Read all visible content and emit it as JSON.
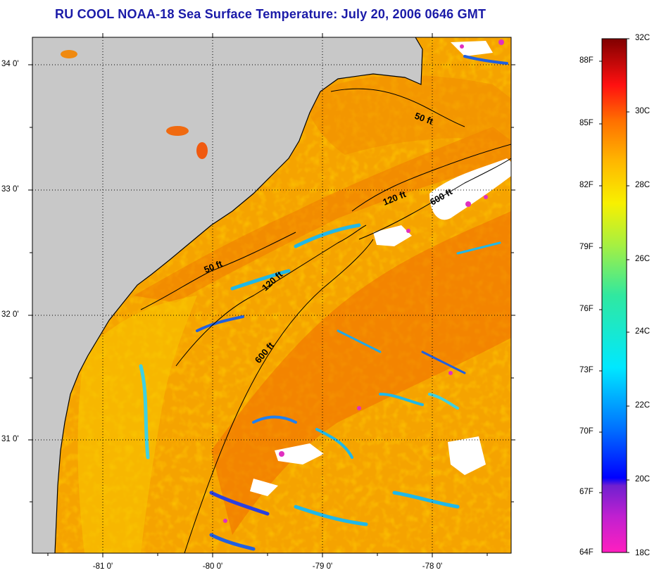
{
  "title": "RU COOL  NOAA-18  Sea Surface Temperature:  July 20, 2006 0646 GMT",
  "map": {
    "lat_labels": [
      "34 0'",
      "33 0'",
      "32 0'",
      "31 0'"
    ],
    "lon_labels": [
      "-81 0'",
      "-80 0'",
      "-79 0'",
      "-78 0'"
    ],
    "contours": [
      "50 ft",
      "120 ft",
      "600 ft",
      "50 ft",
      "120 ft",
      "600 ft"
    ],
    "colors": {
      "land": "#c8c8c8",
      "cloud": "#ffffff",
      "warm": "#f5a000",
      "hot": "#f26a00",
      "cool": "#2ac4e8",
      "cold": "#1a2de0"
    }
  },
  "colorbar": {
    "fahrenheit": [
      "88F",
      "85F",
      "82F",
      "79F",
      "76F",
      "73F",
      "70F",
      "67F",
      "64F"
    ],
    "celsius": [
      "32C",
      "30C",
      "28C",
      "26C",
      "24C",
      "22C",
      "20C",
      "18C"
    ],
    "range_c": [
      18,
      32
    ],
    "range_f": [
      64,
      89.6
    ]
  }
}
